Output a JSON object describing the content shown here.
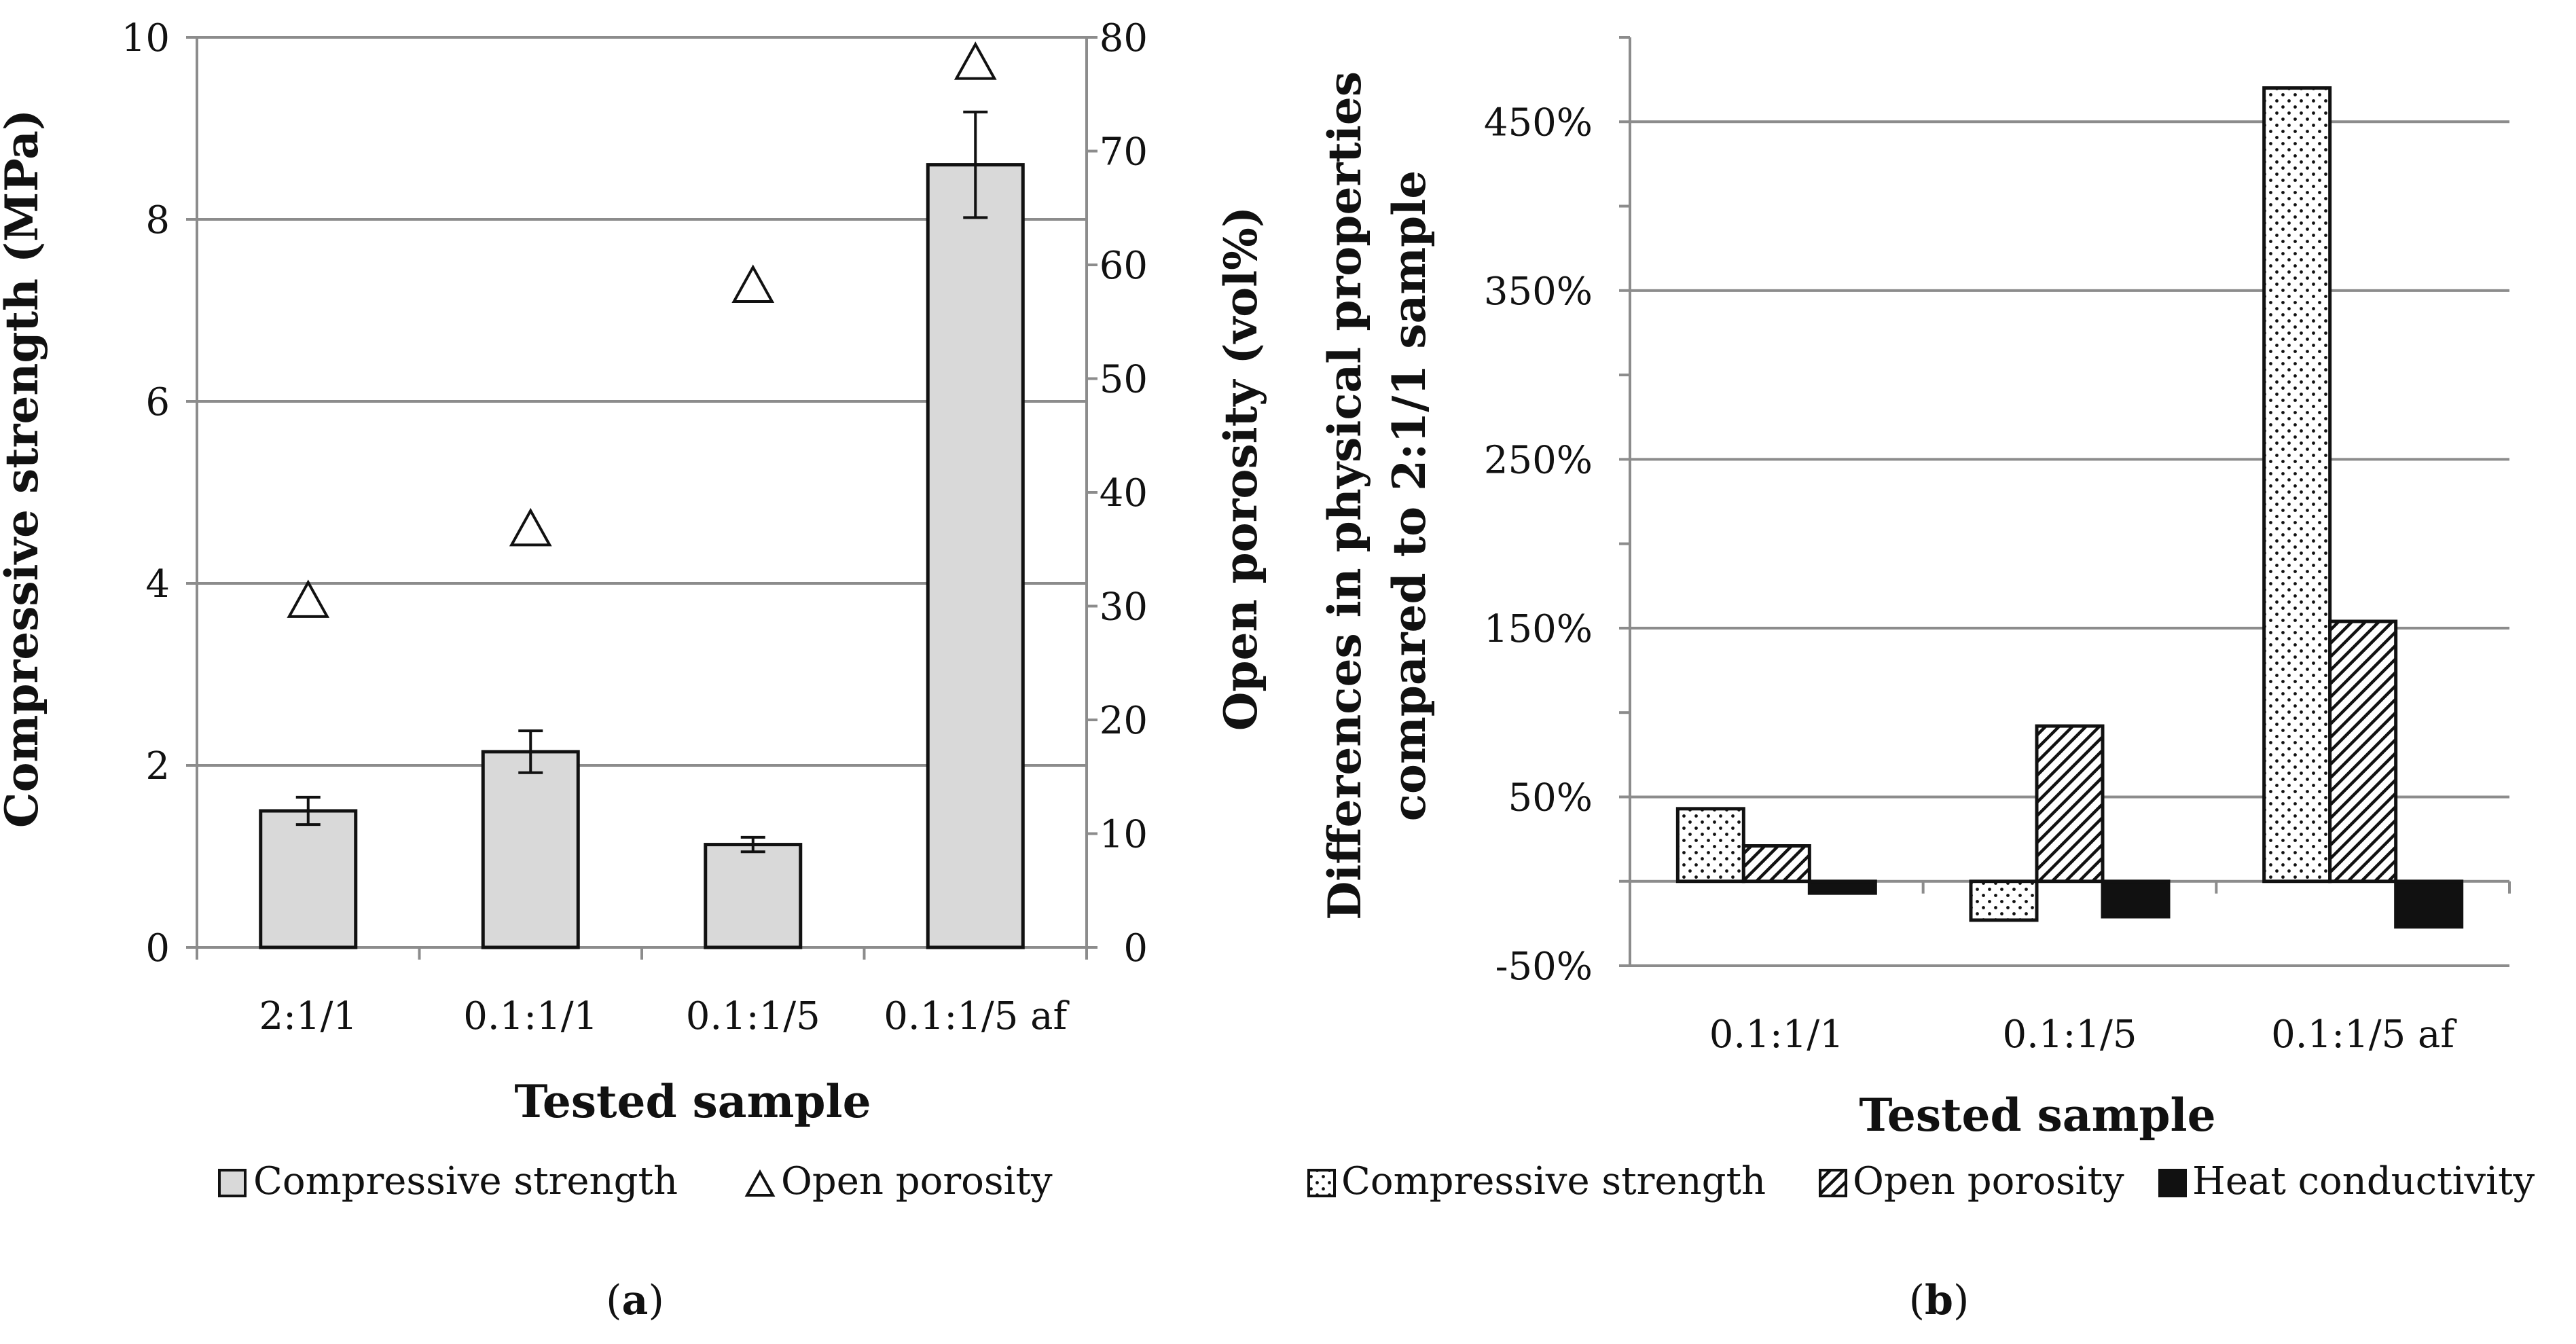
{
  "colors": {
    "bar_fill": "#d9d9d9",
    "grid": "#8c8c8c",
    "ink": "#111111"
  },
  "chart_data": [
    {
      "id": "a",
      "type": "bar",
      "panel_label": "(a)",
      "panel_letter": "a",
      "categories": [
        "2:1/1",
        "0.1:1/1",
        "0.1:1/5",
        "0.1:1/5 af"
      ],
      "xlabel": "Tested sample",
      "ylabel": "Compressive strength (MPa)",
      "y2label": "Open porosity (vol%)",
      "ylim": [
        0,
        10
      ],
      "y2lim": [
        0,
        80
      ],
      "yticks": [
        "0",
        "2",
        "4",
        "6",
        "8",
        "10"
      ],
      "y2ticks": [
        "0",
        "10",
        "20",
        "30",
        "40",
        "50",
        "60",
        "70",
        "80"
      ],
      "series": [
        {
          "name": "Compressive strength",
          "kind": "bar",
          "axis": "left",
          "values": [
            1.5,
            2.15,
            1.13,
            8.6
          ],
          "errors": [
            0.15,
            0.23,
            0.08,
            0.58
          ]
        },
        {
          "name": "Open porosity",
          "kind": "marker-triangle",
          "axis": "right",
          "values": [
            30.5,
            36.8,
            58.2,
            77.8
          ]
        }
      ],
      "legend": [
        "Compressive strength",
        "Open porosity"
      ]
    },
    {
      "id": "b",
      "type": "bar",
      "panel_label": "(b)",
      "panel_letter": "b",
      "categories": [
        "0.1:1/1",
        "0.1:1/5",
        "0.1:1/5 af"
      ],
      "xlabel": "Tested sample",
      "ylabel_lines": [
        "Differences in physical properties",
        "compared to 2:1/1 sample"
      ],
      "ylim": [
        -50,
        500
      ],
      "yticks_values": [
        -50,
        50,
        150,
        250,
        350,
        450
      ],
      "yticks": [
        "-50%",
        "50%",
        "150%",
        "250%",
        "350%",
        "450%"
      ],
      "series": [
        {
          "name": "Compressive strength",
          "pattern": "dots",
          "values": [
            43,
            -23,
            470
          ]
        },
        {
          "name": "Open porosity",
          "pattern": "hatch",
          "values": [
            21,
            92,
            154
          ]
        },
        {
          "name": "Heat conductivity",
          "pattern": "solid",
          "values": [
            -7,
            -21,
            -27
          ]
        }
      ],
      "legend": [
        "Compressive strength",
        "Open porosity",
        "Heat conductivity"
      ]
    }
  ]
}
